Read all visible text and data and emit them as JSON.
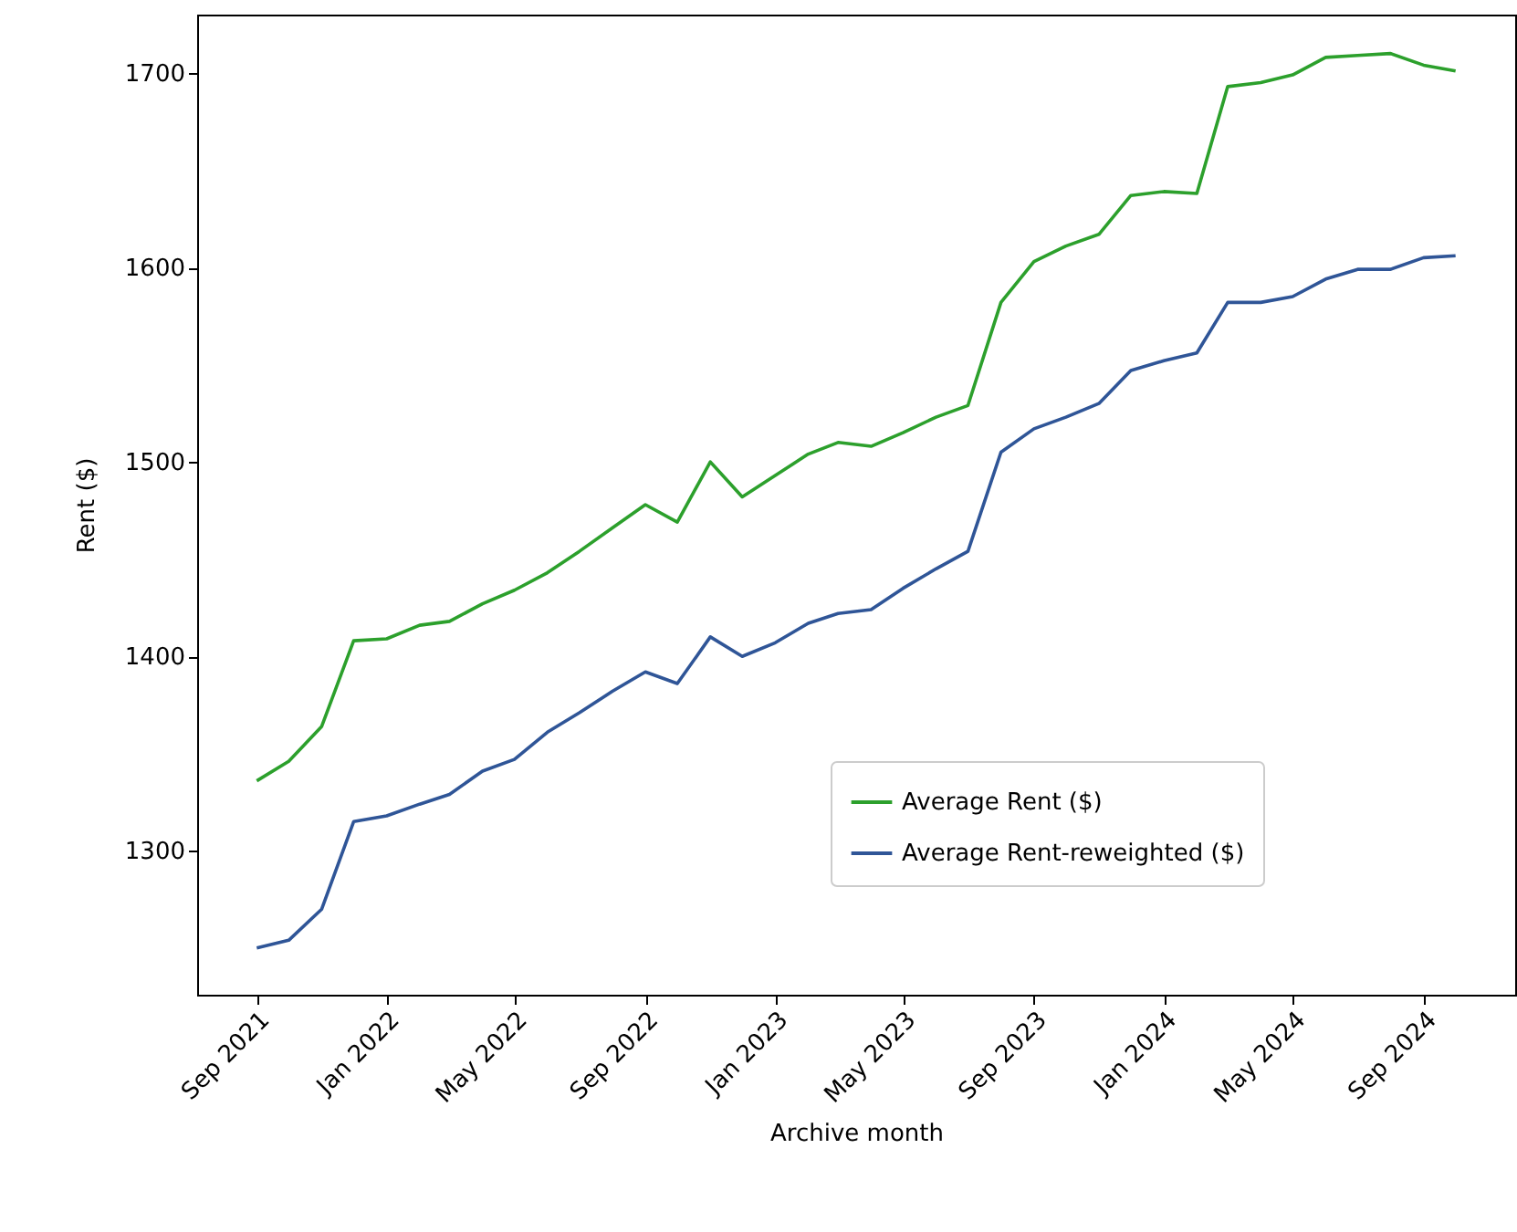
{
  "chart_data": {
    "type": "line",
    "xlabel": "Archive month",
    "ylabel": "Rent ($)",
    "legend": "bottom right",
    "grid": false,
    "x": [
      "2021-09",
      "2021-10",
      "2021-11",
      "2021-12",
      "2022-01",
      "2022-02",
      "2022-03",
      "2022-04",
      "2022-05",
      "2022-06",
      "2022-07",
      "2022-08",
      "2022-09",
      "2022-10",
      "2022-11",
      "2022-12",
      "2023-01",
      "2023-02",
      "2023-03",
      "2023-04",
      "2023-05",
      "2023-06",
      "2023-07",
      "2023-08",
      "2023-09",
      "2023-10",
      "2023-11",
      "2023-12",
      "2024-01",
      "2024-02",
      "2024-03",
      "2024-04",
      "2024-05",
      "2024-06",
      "2024-07",
      "2024-08",
      "2024-09",
      "2024-10"
    ],
    "series": [
      {
        "name": "Average Rent ($)",
        "color": "#2ca02c",
        "values": [
          1336,
          1346,
          1364,
          1408,
          1409,
          1416,
          1418,
          1427,
          1434,
          1443,
          1454,
          1466,
          1478,
          1469,
          1500,
          1482,
          1493,
          1504,
          1510,
          1508,
          1515,
          1523,
          1529,
          1582,
          1603,
          1611,
          1617,
          1637,
          1639,
          1638,
          1693,
          1695,
          1699,
          1708,
          1709,
          1710,
          1704,
          1701
        ]
      },
      {
        "name": "Average Rent-reweighted ($)",
        "color": "#2f5597",
        "values": [
          1250,
          1254,
          1270,
          1315,
          1318,
          1324,
          1329,
          1341,
          1347,
          1361,
          1371,
          1382,
          1392,
          1386,
          1410,
          1400,
          1407,
          1417,
          1422,
          1424,
          1435,
          1445,
          1454,
          1505,
          1517,
          1523,
          1530,
          1547,
          1552,
          1556,
          1582,
          1582,
          1585,
          1594,
          1599,
          1599,
          1605,
          1606
        ]
      }
    ],
    "xlim": [
      "2021-07-07",
      "2024-11-26"
    ],
    "xticks": [
      {
        "value": "2021-09",
        "label": "Sep 2021"
      },
      {
        "value": "2022-01",
        "label": "Jan 2022"
      },
      {
        "value": "2022-05",
        "label": "May 2022"
      },
      {
        "value": "2022-09",
        "label": "Sep 2022"
      },
      {
        "value": "2023-01",
        "label": "Jan 2023"
      },
      {
        "value": "2023-05",
        "label": "May 2023"
      },
      {
        "value": "2023-09",
        "label": "Sep 2023"
      },
      {
        "value": "2024-01",
        "label": "Jan 2024"
      },
      {
        "value": "2024-05",
        "label": "May 2024"
      },
      {
        "value": "2024-09",
        "label": "Sep 2024"
      }
    ],
    "ylim": [
      1226,
      1730
    ],
    "yticks": [
      1300,
      1400,
      1500,
      1600,
      1700
    ]
  }
}
